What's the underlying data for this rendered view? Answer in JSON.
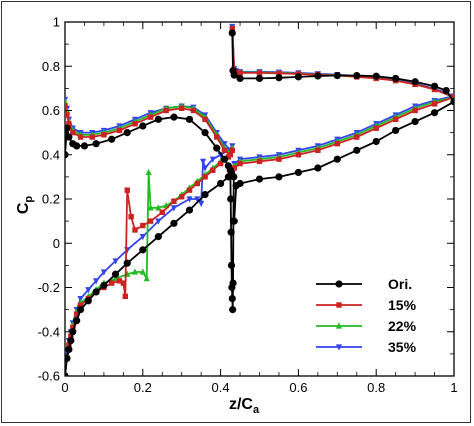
{
  "chart_data": {
    "type": "line",
    "title": "",
    "xlabel": {
      "main": "z/C",
      "sub": "a"
    },
    "ylabel": {
      "main": "C",
      "sub": "p"
    },
    "xlim": [
      0,
      1
    ],
    "ylim": [
      -0.6,
      1
    ],
    "xticks": [
      0,
      0.2,
      0.4,
      0.6,
      0.8,
      1
    ],
    "xtick_labels": [
      "0",
      "0.2",
      "0.4",
      "0.6",
      "0.8",
      "1"
    ],
    "yticks": [
      -0.6,
      -0.4,
      -0.2,
      0,
      0.2,
      0.4,
      0.6,
      0.8,
      1
    ],
    "ytick_labels": [
      "-0.6",
      "-0.4",
      "-0.2",
      "0",
      "0.2",
      "0.4",
      "0.6",
      "0.8",
      "1"
    ],
    "grid": false,
    "legend_position": "bottom-right",
    "series": [
      {
        "name": "Ori.",
        "color": "#000000",
        "marker": "circle",
        "upper": {
          "x": [
            0,
            0.005,
            0.01,
            0.02,
            0.03,
            0.05,
            0.08,
            0.12,
            0.16,
            0.2,
            0.24,
            0.28,
            0.32,
            0.36,
            0.39,
            0.41,
            0.42,
            0.425
          ],
          "y": [
            0.4,
            0.52,
            0.48,
            0.45,
            0.44,
            0.44,
            0.45,
            0.47,
            0.5,
            0.53,
            0.56,
            0.57,
            0.56,
            0.5,
            0.43,
            0.38,
            0.35,
            0.33
          ]
        },
        "lower": {
          "x": [
            0,
            0.005,
            0.01,
            0.015,
            0.02,
            0.03,
            0.04,
            0.06,
            0.08,
            0.1,
            0.13,
            0.16,
            0.2,
            0.24,
            0.28,
            0.32,
            0.36,
            0.4,
            0.42,
            0.428
          ],
          "y": [
            -0.6,
            -0.52,
            -0.48,
            -0.44,
            -0.4,
            -0.35,
            -0.3,
            -0.26,
            -0.22,
            -0.19,
            -0.14,
            -0.09,
            -0.03,
            0.03,
            0.09,
            0.15,
            0.22,
            0.27,
            0.3,
            0.32
          ]
        },
        "shock": {
          "x": [
            0.425,
            0.426,
            0.427,
            0.428,
            0.429,
            0.43,
            0.431,
            0.432,
            0.433,
            0.434
          ],
          "y": [
            0.33,
            0.2,
            0.05,
            -0.1,
            -0.2,
            -0.25,
            -0.3,
            -0.18,
            0.1,
            0.3
          ]
        },
        "after_upper": {
          "x": [
            0.43,
            0.432,
            0.435,
            0.45,
            0.5,
            0.55,
            0.6,
            0.65,
            0.7,
            0.75,
            0.8,
            0.85,
            0.9,
            0.95,
            0.98,
            1.0
          ],
          "y": [
            0.95,
            0.78,
            0.76,
            0.745,
            0.745,
            0.748,
            0.752,
            0.756,
            0.758,
            0.758,
            0.755,
            0.745,
            0.73,
            0.71,
            0.69,
            0.64
          ]
        },
        "after_lower": {
          "x": [
            0.435,
            0.44,
            0.45,
            0.5,
            0.55,
            0.6,
            0.65,
            0.7,
            0.75,
            0.8,
            0.85,
            0.9,
            0.95,
            1.0
          ],
          "y": [
            0.1,
            0.26,
            0.27,
            0.29,
            0.3,
            0.32,
            0.34,
            0.38,
            0.42,
            0.46,
            0.51,
            0.55,
            0.59,
            0.64
          ]
        }
      },
      {
        "name": "15%",
        "color": "#cc2222",
        "marker": "square",
        "upper": {
          "x": [
            0,
            0.005,
            0.01,
            0.02,
            0.04,
            0.07,
            0.1,
            0.14,
            0.18,
            0.22,
            0.26,
            0.3,
            0.33,
            0.36,
            0.39,
            0.41,
            0.425
          ],
          "y": [
            0.62,
            0.58,
            0.54,
            0.5,
            0.48,
            0.48,
            0.49,
            0.51,
            0.54,
            0.57,
            0.6,
            0.61,
            0.6,
            0.56,
            0.48,
            0.42,
            0.4
          ]
        },
        "lower": {
          "x": [
            0,
            0.005,
            0.01,
            0.015,
            0.02,
            0.03,
            0.04,
            0.06,
            0.08,
            0.1,
            0.12,
            0.14,
            0.15,
            0.155,
            0.16,
            0.17,
            0.18,
            0.2,
            0.22,
            0.25,
            0.28,
            0.3,
            0.32,
            0.34,
            0.36,
            0.38,
            0.4,
            0.42,
            0.43
          ],
          "y": [
            -0.6,
            -0.52,
            -0.46,
            -0.42,
            -0.38,
            -0.32,
            -0.28,
            -0.25,
            -0.22,
            -0.2,
            -0.18,
            -0.17,
            -0.18,
            -0.24,
            0.24,
            0.12,
            0.06,
            0.08,
            0.1,
            0.14,
            0.19,
            0.21,
            0.24,
            0.27,
            0.3,
            0.33,
            0.36,
            0.39,
            0.42
          ]
        },
        "after_upper": {
          "x": [
            0.43,
            0.435,
            0.44,
            0.45,
            0.5,
            0.55,
            0.6,
            0.65,
            0.7,
            0.75,
            0.8,
            0.85,
            0.9,
            0.95,
            1.0
          ],
          "y": [
            0.97,
            0.78,
            0.77,
            0.77,
            0.77,
            0.768,
            0.765,
            0.762,
            0.758,
            0.752,
            0.745,
            0.735,
            0.718,
            0.695,
            0.66
          ]
        },
        "after_lower": {
          "x": [
            0.435,
            0.45,
            0.5,
            0.55,
            0.6,
            0.65,
            0.7,
            0.75,
            0.8,
            0.85,
            0.9,
            0.95,
            1.0
          ],
          "y": [
            0.34,
            0.36,
            0.37,
            0.38,
            0.4,
            0.42,
            0.45,
            0.48,
            0.52,
            0.56,
            0.6,
            0.63,
            0.66
          ]
        }
      },
      {
        "name": "22%",
        "color": "#22bb22",
        "marker": "triangle",
        "upper": {
          "x": [
            0,
            0.005,
            0.01,
            0.02,
            0.04,
            0.07,
            0.1,
            0.14,
            0.18,
            0.22,
            0.26,
            0.3,
            0.33,
            0.36,
            0.39,
            0.41,
            0.425
          ],
          "y": [
            0.64,
            0.6,
            0.55,
            0.51,
            0.49,
            0.49,
            0.5,
            0.52,
            0.55,
            0.58,
            0.61,
            0.62,
            0.61,
            0.57,
            0.49,
            0.43,
            0.41
          ]
        },
        "lower": {
          "x": [
            0,
            0.005,
            0.01,
            0.015,
            0.02,
            0.03,
            0.04,
            0.06,
            0.08,
            0.1,
            0.13,
            0.16,
            0.18,
            0.2,
            0.21,
            0.215,
            0.22,
            0.24,
            0.26,
            0.28,
            0.3,
            0.32,
            0.34,
            0.36,
            0.38,
            0.4,
            0.42,
            0.43
          ],
          "y": [
            -0.6,
            -0.51,
            -0.45,
            -0.41,
            -0.37,
            -0.31,
            -0.27,
            -0.24,
            -0.21,
            -0.18,
            -0.16,
            -0.14,
            -0.13,
            -0.13,
            -0.16,
            0.32,
            0.16,
            0.16,
            0.17,
            0.19,
            0.22,
            0.25,
            0.28,
            0.31,
            0.34,
            0.37,
            0.4,
            0.43
          ]
        },
        "after_upper": {
          "x": [
            0.43,
            0.435,
            0.44,
            0.45,
            0.5,
            0.55,
            0.6,
            0.65,
            0.7,
            0.75,
            0.8,
            0.85,
            0.9,
            0.95,
            1.0
          ],
          "y": [
            0.97,
            0.78,
            0.775,
            0.772,
            0.772,
            0.77,
            0.767,
            0.763,
            0.759,
            0.753,
            0.746,
            0.736,
            0.719,
            0.696,
            0.66
          ]
        },
        "after_lower": {
          "x": [
            0.435,
            0.45,
            0.5,
            0.55,
            0.6,
            0.65,
            0.7,
            0.75,
            0.8,
            0.85,
            0.9,
            0.95,
            1.0
          ],
          "y": [
            0.35,
            0.37,
            0.38,
            0.39,
            0.41,
            0.43,
            0.46,
            0.49,
            0.53,
            0.57,
            0.61,
            0.64,
            0.66
          ]
        }
      },
      {
        "name": "35%",
        "color": "#3344ee",
        "marker": "triangle-down",
        "upper": {
          "x": [
            0,
            0.005,
            0.01,
            0.02,
            0.04,
            0.07,
            0.1,
            0.14,
            0.18,
            0.22,
            0.26,
            0.3,
            0.33,
            0.36,
            0.39,
            0.41,
            0.425
          ],
          "y": [
            0.65,
            0.61,
            0.56,
            0.52,
            0.5,
            0.5,
            0.51,
            0.53,
            0.56,
            0.59,
            0.61,
            0.62,
            0.615,
            0.58,
            0.5,
            0.45,
            0.42
          ]
        },
        "lower": {
          "x": [
            0,
            0.005,
            0.01,
            0.015,
            0.02,
            0.03,
            0.04,
            0.06,
            0.08,
            0.1,
            0.13,
            0.16,
            0.2,
            0.24,
            0.28,
            0.32,
            0.34,
            0.35,
            0.355,
            0.36,
            0.38,
            0.4,
            0.42,
            0.43
          ],
          "y": [
            -0.6,
            -0.5,
            -0.44,
            -0.4,
            -0.36,
            -0.3,
            -0.25,
            -0.21,
            -0.17,
            -0.13,
            -0.08,
            -0.03,
            0.03,
            0.1,
            0.16,
            0.2,
            0.2,
            0.18,
            0.37,
            0.34,
            0.38,
            0.4,
            0.42,
            0.44
          ]
        },
        "after_upper": {
          "x": [
            0.43,
            0.435,
            0.44,
            0.45,
            0.5,
            0.55,
            0.6,
            0.65,
            0.7,
            0.75,
            0.8,
            0.85,
            0.9,
            0.95,
            1.0
          ],
          "y": [
            0.98,
            0.79,
            0.78,
            0.775,
            0.775,
            0.773,
            0.77,
            0.766,
            0.762,
            0.756,
            0.749,
            0.739,
            0.722,
            0.699,
            0.665
          ]
        },
        "after_lower": {
          "x": [
            0.435,
            0.45,
            0.5,
            0.55,
            0.6,
            0.65,
            0.7,
            0.75,
            0.8,
            0.85,
            0.9,
            0.95,
            1.0
          ],
          "y": [
            0.36,
            0.38,
            0.39,
            0.4,
            0.42,
            0.44,
            0.47,
            0.5,
            0.54,
            0.58,
            0.62,
            0.645,
            0.665
          ]
        }
      }
    ]
  }
}
